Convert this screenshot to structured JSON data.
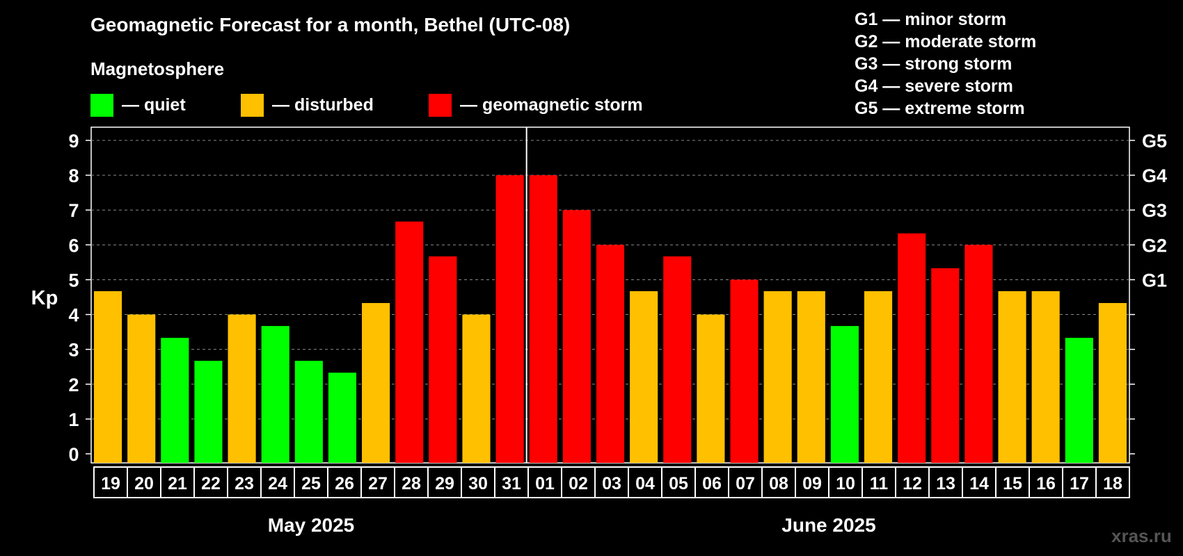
{
  "title": "Geomagnetic Forecast for a month, Bethel (UTC-08)",
  "subtitle": "Magnetosphere",
  "legend": [
    {
      "label": "— quiet",
      "color": "#00ff00"
    },
    {
      "label": "— disturbed",
      "color": "#ffc000"
    },
    {
      "label": "— geomagnetic storm",
      "color": "#ff0000"
    }
  ],
  "storm_levels": [
    {
      "text": "G1 — minor storm"
    },
    {
      "text": "G2 — moderate storm"
    },
    {
      "text": "G3 — strong storm"
    },
    {
      "text": "G4 — severe storm"
    },
    {
      "text": "G5 — extreme storm"
    }
  ],
  "watermark": "xras.ru",
  "colors": {
    "quiet": "#00ff00",
    "disturbed": "#ffc000",
    "storm": "#ff0000"
  },
  "chart_data": {
    "type": "bar",
    "ylabel": "Kp",
    "ylim": [
      0,
      9
    ],
    "yticks": [
      "0",
      "1",
      "2",
      "3",
      "4",
      "5",
      "6",
      "7",
      "8",
      "9"
    ],
    "right_ticks": [
      {
        "value": 5,
        "label": "G1"
      },
      {
        "value": 6,
        "label": "G2"
      },
      {
        "value": 7,
        "label": "G3"
      },
      {
        "value": 8,
        "label": "G4"
      },
      {
        "value": 9,
        "label": "G5"
      }
    ],
    "categories": [
      "19",
      "20",
      "21",
      "22",
      "23",
      "24",
      "25",
      "26",
      "27",
      "28",
      "29",
      "30",
      "31",
      "01",
      "02",
      "03",
      "04",
      "05",
      "06",
      "07",
      "08",
      "09",
      "10",
      "11",
      "12",
      "13",
      "14",
      "15",
      "16",
      "17",
      "18"
    ],
    "values": [
      4.67,
      4.0,
      3.33,
      2.67,
      4.0,
      3.67,
      2.67,
      2.33,
      4.33,
      6.67,
      5.67,
      4.0,
      8.0,
      8.0,
      7.0,
      6.0,
      4.67,
      5.67,
      4.0,
      5.0,
      4.67,
      4.67,
      3.67,
      4.67,
      6.33,
      5.33,
      6.0,
      4.67,
      4.67,
      3.33,
      4.33
    ],
    "levels": [
      "disturbed",
      "disturbed",
      "quiet",
      "quiet",
      "disturbed",
      "quiet",
      "quiet",
      "quiet",
      "disturbed",
      "storm",
      "storm",
      "disturbed",
      "storm",
      "storm",
      "storm",
      "storm",
      "disturbed",
      "storm",
      "disturbed",
      "storm",
      "disturbed",
      "disturbed",
      "quiet",
      "disturbed",
      "storm",
      "storm",
      "storm",
      "disturbed",
      "disturbed",
      "quiet",
      "disturbed"
    ],
    "months": [
      {
        "label": "May 2025",
        "start": 0,
        "count": 13
      },
      {
        "label": "June 2025",
        "start": 13,
        "count": 18
      }
    ],
    "grid": true
  }
}
